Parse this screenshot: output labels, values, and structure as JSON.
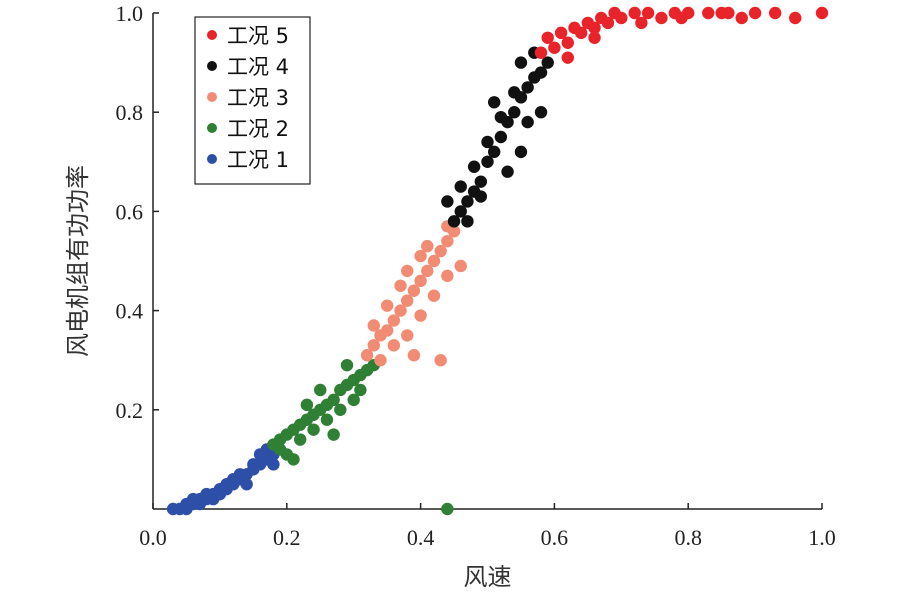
{
  "chart_data": {
    "type": "scatter",
    "title": "",
    "xlabel": "风速",
    "ylabel": "风电机组有功功率",
    "xlim": [
      0,
      1
    ],
    "ylim": [
      0,
      1
    ],
    "x_ticks": [
      "0.0",
      "0.2",
      "0.4",
      "0.6",
      "0.8",
      "1.0"
    ],
    "y_ticks": [
      "0.2",
      "0.4",
      "0.6",
      "0.8",
      "1.0"
    ],
    "grid": false,
    "legend_position": "top-left",
    "series": [
      {
        "name": "工况 5",
        "color": "#e8232a",
        "points": [
          [
            0.59,
            0.95
          ],
          [
            0.6,
            0.93
          ],
          [
            0.61,
            0.96
          ],
          [
            0.62,
            0.94
          ],
          [
            0.63,
            0.97
          ],
          [
            0.64,
            0.96
          ],
          [
            0.65,
            0.98
          ],
          [
            0.66,
            0.97
          ],
          [
            0.67,
            0.99
          ],
          [
            0.68,
            0.98
          ],
          [
            0.7,
            0.99
          ],
          [
            0.72,
            1.0
          ],
          [
            0.74,
            1.0
          ],
          [
            0.76,
            0.99
          ],
          [
            0.78,
            1.0
          ],
          [
            0.8,
            1.0
          ],
          [
            0.83,
            1.0
          ],
          [
            0.86,
            1.0
          ],
          [
            0.88,
            0.99
          ],
          [
            0.9,
            1.0
          ],
          [
            0.93,
            1.0
          ],
          [
            0.96,
            0.99
          ],
          [
            1.0,
            1.0
          ],
          [
            0.58,
            0.92
          ],
          [
            0.62,
            0.91
          ],
          [
            0.66,
            0.95
          ],
          [
            0.69,
            1.0
          ],
          [
            0.73,
            0.98
          ],
          [
            0.79,
            0.99
          ],
          [
            0.85,
            1.0
          ]
        ]
      },
      {
        "name": "工况 4",
        "color": "#111111",
        "points": [
          [
            0.45,
            0.58
          ],
          [
            0.46,
            0.6
          ],
          [
            0.47,
            0.62
          ],
          [
            0.48,
            0.64
          ],
          [
            0.49,
            0.66
          ],
          [
            0.5,
            0.7
          ],
          [
            0.51,
            0.72
          ],
          [
            0.52,
            0.75
          ],
          [
            0.53,
            0.78
          ],
          [
            0.54,
            0.8
          ],
          [
            0.55,
            0.83
          ],
          [
            0.56,
            0.85
          ],
          [
            0.57,
            0.87
          ],
          [
            0.58,
            0.88
          ],
          [
            0.59,
            0.9
          ],
          [
            0.46,
            0.65
          ],
          [
            0.48,
            0.69
          ],
          [
            0.5,
            0.74
          ],
          [
            0.52,
            0.79
          ],
          [
            0.54,
            0.84
          ],
          [
            0.55,
            0.9
          ],
          [
            0.56,
            0.78
          ],
          [
            0.57,
            0.92
          ],
          [
            0.53,
            0.68
          ],
          [
            0.49,
            0.63
          ],
          [
            0.51,
            0.82
          ],
          [
            0.47,
            0.58
          ],
          [
            0.44,
            0.62
          ],
          [
            0.55,
            0.72
          ],
          [
            0.58,
            0.8
          ]
        ]
      },
      {
        "name": "工况 3",
        "color": "#f28b74",
        "points": [
          [
            0.32,
            0.31
          ],
          [
            0.33,
            0.33
          ],
          [
            0.34,
            0.35
          ],
          [
            0.35,
            0.36
          ],
          [
            0.36,
            0.38
          ],
          [
            0.37,
            0.4
          ],
          [
            0.38,
            0.42
          ],
          [
            0.39,
            0.44
          ],
          [
            0.4,
            0.46
          ],
          [
            0.41,
            0.48
          ],
          [
            0.42,
            0.5
          ],
          [
            0.43,
            0.52
          ],
          [
            0.44,
            0.54
          ],
          [
            0.45,
            0.56
          ],
          [
            0.34,
            0.3
          ],
          [
            0.36,
            0.33
          ],
          [
            0.38,
            0.35
          ],
          [
            0.4,
            0.39
          ],
          [
            0.42,
            0.43
          ],
          [
            0.44,
            0.47
          ],
          [
            0.43,
            0.3
          ],
          [
            0.39,
            0.31
          ],
          [
            0.37,
            0.45
          ],
          [
            0.41,
            0.53
          ],
          [
            0.35,
            0.41
          ],
          [
            0.44,
            0.57
          ],
          [
            0.33,
            0.37
          ],
          [
            0.4,
            0.51
          ],
          [
            0.46,
            0.49
          ],
          [
            0.38,
            0.48
          ]
        ]
      },
      {
        "name": "工况 2",
        "color": "#2f7f34",
        "points": [
          [
            0.18,
            0.13
          ],
          [
            0.19,
            0.14
          ],
          [
            0.2,
            0.15
          ],
          [
            0.21,
            0.16
          ],
          [
            0.22,
            0.17
          ],
          [
            0.23,
            0.18
          ],
          [
            0.24,
            0.19
          ],
          [
            0.25,
            0.2
          ],
          [
            0.26,
            0.21
          ],
          [
            0.27,
            0.22
          ],
          [
            0.28,
            0.24
          ],
          [
            0.29,
            0.25
          ],
          [
            0.3,
            0.26
          ],
          [
            0.31,
            0.27
          ],
          [
            0.32,
            0.28
          ],
          [
            0.2,
            0.11
          ],
          [
            0.22,
            0.14
          ],
          [
            0.24,
            0.16
          ],
          [
            0.26,
            0.18
          ],
          [
            0.28,
            0.2
          ],
          [
            0.3,
            0.22
          ],
          [
            0.25,
            0.24
          ],
          [
            0.27,
            0.15
          ],
          [
            0.29,
            0.29
          ],
          [
            0.31,
            0.24
          ],
          [
            0.23,
            0.21
          ],
          [
            0.21,
            0.1
          ],
          [
            0.33,
            0.29
          ],
          [
            0.44,
            0.0
          ],
          [
            0.19,
            0.12
          ]
        ]
      },
      {
        "name": "工况 1",
        "color": "#2d4fa8",
        "points": [
          [
            0.03,
            0.0
          ],
          [
            0.04,
            0.0
          ],
          [
            0.05,
            0.01
          ],
          [
            0.06,
            0.01
          ],
          [
            0.07,
            0.02
          ],
          [
            0.08,
            0.02
          ],
          [
            0.09,
            0.03
          ],
          [
            0.1,
            0.04
          ],
          [
            0.11,
            0.05
          ],
          [
            0.12,
            0.05
          ],
          [
            0.13,
            0.06
          ],
          [
            0.14,
            0.07
          ],
          [
            0.15,
            0.08
          ],
          [
            0.16,
            0.09
          ],
          [
            0.17,
            0.1
          ],
          [
            0.18,
            0.11
          ],
          [
            0.05,
            0.0
          ],
          [
            0.07,
            0.01
          ],
          [
            0.09,
            0.02
          ],
          [
            0.11,
            0.04
          ],
          [
            0.13,
            0.07
          ],
          [
            0.15,
            0.09
          ],
          [
            0.16,
            0.11
          ],
          [
            0.17,
            0.12
          ],
          [
            0.18,
            0.09
          ],
          [
            0.14,
            0.05
          ],
          [
            0.1,
            0.03
          ],
          [
            0.12,
            0.06
          ],
          [
            0.08,
            0.03
          ],
          [
            0.06,
            0.02
          ]
        ]
      }
    ]
  }
}
